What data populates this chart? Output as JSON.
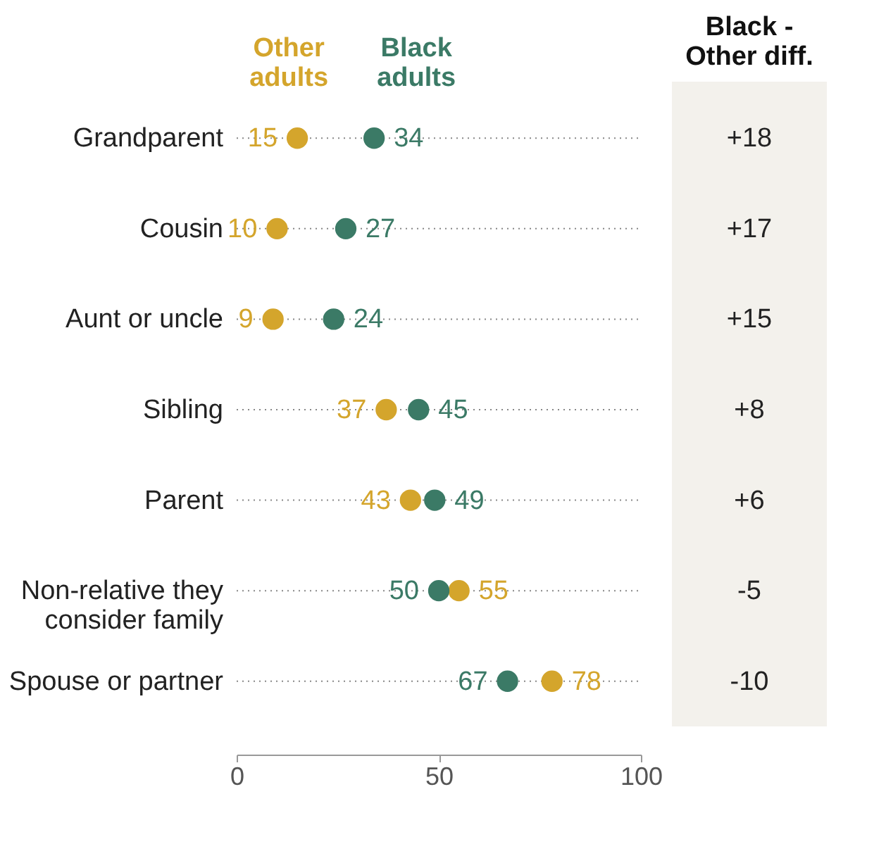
{
  "chart_data": {
    "type": "scatter",
    "categories": [
      "Grandparent",
      "Cousin",
      "Aunt or uncle",
      "Sibling",
      "Parent",
      "Non-relative they\nconsider family",
      "Spouse or partner"
    ],
    "series": [
      {
        "name": "Other adults",
        "color": "#d4a52c",
        "values": [
          15,
          10,
          9,
          37,
          43,
          55,
          78
        ]
      },
      {
        "name": "Black adults",
        "color": "#3b7a66",
        "values": [
          34,
          27,
          24,
          45,
          49,
          50,
          67
        ]
      }
    ],
    "xlim": [
      0,
      100
    ],
    "xticks": [
      0,
      50,
      100
    ],
    "grid": "y",
    "line_style": "dotted",
    "marker": "circle",
    "data_labels": true,
    "orientation": "horizontal",
    "annotations": [
      "Black -\nOther diff.",
      "+18",
      "+17",
      "+15",
      "+8",
      "+6",
      "-5",
      "-10"
    ]
  }
}
